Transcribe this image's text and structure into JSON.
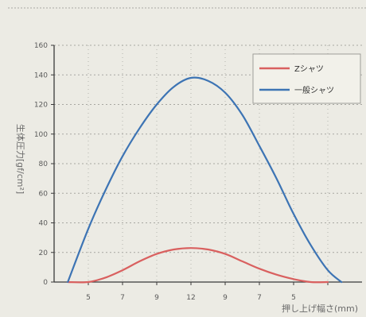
{
  "chart_data": {
    "type": "line",
    "title": "",
    "xlabel": "押し上げ幅さ(mm)",
    "ylabel": "生体圧力[gf/cm²]",
    "ylim": [
      0,
      160
    ],
    "yticks": [
      0,
      20,
      40,
      60,
      80,
      100,
      120,
      140,
      160
    ],
    "xlim": [
      0,
      9
    ],
    "xticks": [
      1,
      2,
      3,
      4,
      5,
      6,
      7,
      8
    ],
    "xtick_labels": [
      "5",
      "7",
      "9",
      "12",
      "9",
      "7",
      "5",
      ""
    ],
    "grid": true,
    "legend_position": "top-right",
    "series": [
      {
        "name": "Zシャツ",
        "color": "#d9605f",
        "x": [
          0.4,
          1.0,
          1.5,
          2.0,
          2.5,
          3.0,
          3.5,
          4.0,
          4.5,
          5.0,
          5.5,
          6.0,
          6.5,
          7.0,
          7.5,
          8.0
        ],
        "y": [
          0,
          0,
          3,
          8,
          14,
          19,
          22,
          23,
          22,
          19,
          14,
          9,
          5,
          2,
          0,
          0
        ]
      },
      {
        "name": "一般シャツ",
        "color": "#3d74b4",
        "x": [
          0.4,
          1.0,
          1.5,
          2.0,
          2.5,
          3.0,
          3.5,
          4.0,
          4.5,
          5.0,
          5.5,
          6.0,
          6.5,
          7.0,
          7.5,
          8.0,
          8.4
        ],
        "y": [
          0,
          36,
          62,
          85,
          104,
          120,
          132,
          138,
          136,
          128,
          113,
          92,
          70,
          46,
          25,
          8,
          0
        ]
      }
    ]
  }
}
